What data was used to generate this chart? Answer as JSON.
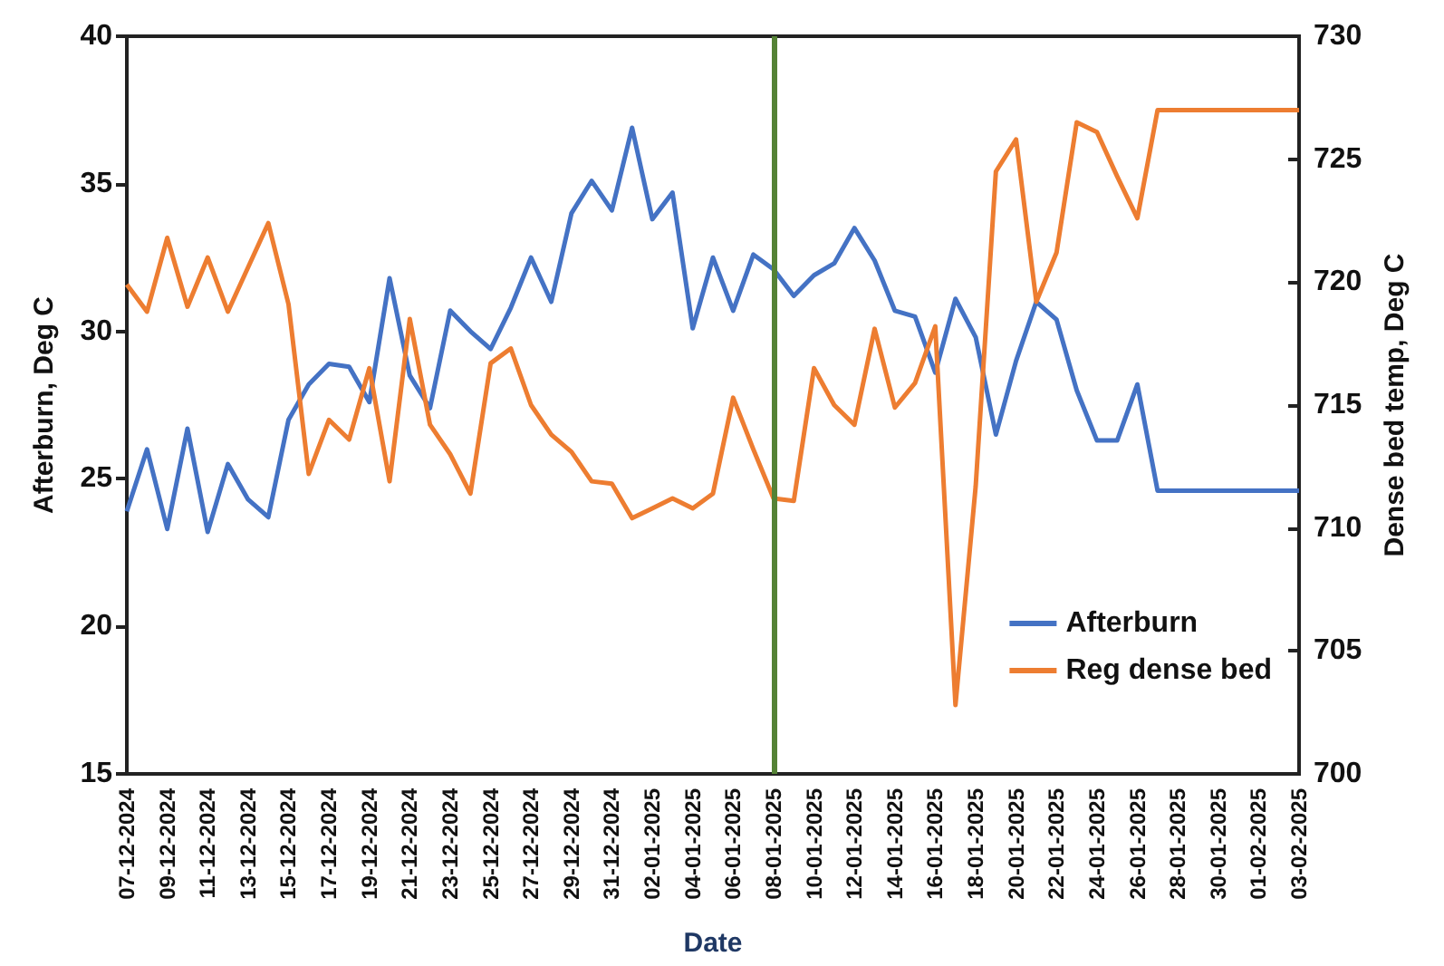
{
  "chart_data": {
    "type": "line",
    "xlabel": "Date",
    "ylabel": "Afterburn, Deg C",
    "y2label": "Dense bed temp, Deg C",
    "categories": [
      "07-12-2024",
      null,
      "09-12-2024",
      null,
      "11-12-2024",
      null,
      "13-12-2024",
      null,
      "15-12-2024",
      null,
      "17-12-2024",
      null,
      "19-12-2024",
      null,
      "21-12-2024",
      null,
      "23-12-2024",
      null,
      "25-12-2024",
      null,
      "27-12-2024",
      null,
      "29-12-2024",
      null,
      "31-12-2024",
      null,
      "02-01-2025",
      null,
      "04-01-2025",
      null,
      "06-01-2025",
      null,
      "08-01-2025",
      null,
      "10-01-2025",
      null,
      "12-01-2025",
      null,
      "14-01-2025",
      null,
      "16-01-2025",
      null,
      "18-01-2025",
      null,
      "20-01-2025",
      null,
      "22-01-2025",
      null,
      "24-01-2025",
      null,
      "26-01-2025",
      null,
      "28-01-2025",
      null,
      "30-01-2025",
      null,
      "01-02-2025",
      null,
      "03-02-2025"
    ],
    "series": [
      {
        "name": "Afterburn",
        "color": "#4472c4",
        "values": [
          23.9,
          26.0,
          23.3,
          26.7,
          23.2,
          25.5,
          24.3,
          23.7,
          27.0,
          28.2,
          28.9,
          28.8,
          27.6,
          31.8,
          28.5,
          27.4,
          30.7,
          30.0,
          29.4,
          30.8,
          32.5,
          31.0,
          34.0,
          35.1,
          34.1,
          36.9,
          33.8,
          34.7,
          30.1,
          32.5,
          30.7,
          32.6,
          32.1,
          31.2,
          31.9,
          32.3,
          33.5,
          32.4,
          30.7,
          30.5,
          28.6,
          31.1,
          29.8,
          26.5,
          29.0,
          31.0,
          30.4,
          28.0,
          26.3,
          26.3,
          28.2,
          24.6,
          24.6,
          24.6,
          24.6,
          24.6,
          24.6,
          24.6,
          24.6
        ]
      },
      {
        "name": "Reg dense bed",
        "color": "#ed7d31",
        "axis": "y2",
        "values": [
          719.9,
          718.8,
          721.8,
          719.0,
          721.0,
          718.8,
          720.6,
          722.4,
          719.1,
          712.2,
          714.4,
          713.6,
          716.5,
          711.9,
          718.5,
          714.2,
          713.0,
          711.4,
          716.7,
          717.3,
          715.0,
          713.8,
          713.1,
          711.9,
          711.8,
          710.4,
          710.8,
          711.2,
          710.8,
          711.4,
          715.3,
          713.2,
          711.2,
          711.1,
          716.5,
          715.0,
          714.2,
          718.1,
          714.9,
          715.9,
          718.2,
          702.8,
          711.7,
          724.5,
          725.8,
          719.2,
          721.2,
          726.5,
          726.1,
          724.3,
          722.6,
          727.0,
          727.0,
          727.0,
          727.0,
          727.0,
          727.0,
          727.0,
          727.0
        ]
      }
    ],
    "ylim": [
      15,
      40
    ],
    "yticks": [
      15,
      20,
      25,
      30,
      35,
      40
    ],
    "y2lim": [
      700,
      730
    ],
    "y2ticks": [
      700,
      705,
      710,
      715,
      720,
      725,
      730
    ],
    "ref_lines": [
      {
        "axis": "x",
        "value": "08-01-2025",
        "color": "#548235"
      }
    ],
    "grid": false,
    "legend": "bottom right",
    "marker": "none",
    "line_style": "solid"
  }
}
